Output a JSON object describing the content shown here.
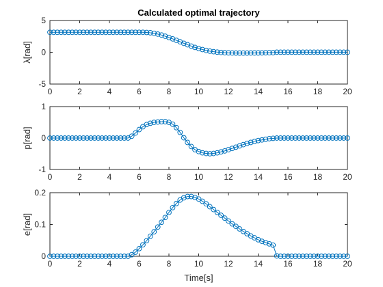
{
  "colors": {
    "series": "#0072BD",
    "axis": "#262626",
    "background": "#ffffff"
  },
  "chart_data": [
    {
      "type": "scatter",
      "title": "Calculated optimal trajectory",
      "xlabel": "",
      "ylabel": "λ[rad]",
      "xlim": [
        0,
        20
      ],
      "ylim": [
        -5,
        5
      ],
      "xticks": [
        "0",
        "2",
        "4",
        "6",
        "8",
        "10",
        "12",
        "14",
        "16",
        "18",
        "20"
      ],
      "yticks": [
        "-5",
        "0",
        "5"
      ],
      "marker": "circle",
      "grid": false,
      "series": [
        {
          "x": [
            0,
            0.25,
            0.5,
            0.75,
            1,
            1.25,
            1.5,
            1.75,
            2,
            2.25,
            2.5,
            2.75,
            3,
            3.25,
            3.5,
            3.75,
            4,
            4.25,
            4.5,
            4.75,
            5,
            5.25,
            5.5,
            5.75,
            6,
            6.25,
            6.5,
            6.75,
            7,
            7.25,
            7.5,
            7.75,
            8,
            8.25,
            8.5,
            8.75,
            9,
            9.25,
            9.5,
            9.75,
            10,
            10.25,
            10.5,
            10.75,
            11,
            11.25,
            11.5,
            11.75,
            12,
            12.25,
            12.5,
            12.75,
            13,
            13.25,
            13.5,
            13.75,
            14,
            14.25,
            14.5,
            14.75,
            15,
            15.25,
            15.5,
            15.75,
            16,
            16.25,
            16.5,
            16.75,
            17,
            17.25,
            17.5,
            17.75,
            18,
            18.25,
            18.5,
            18.75,
            19,
            19.25,
            19.5,
            19.75,
            20
          ],
          "values": [
            3.14,
            3.14,
            3.14,
            3.14,
            3.14,
            3.14,
            3.14,
            3.14,
            3.14,
            3.14,
            3.14,
            3.14,
            3.14,
            3.14,
            3.14,
            3.14,
            3.14,
            3.14,
            3.14,
            3.14,
            3.14,
            3.14,
            3.14,
            3.14,
            3.14,
            3.14,
            3.12,
            3.07,
            2.98,
            2.86,
            2.71,
            2.53,
            2.33,
            2.11,
            1.88,
            1.65,
            1.41,
            1.19,
            0.97,
            0.77,
            0.59,
            0.43,
            0.29,
            0.18,
            0.09,
            0.02,
            -0.03,
            -0.07,
            -0.09,
            -0.11,
            -0.12,
            -0.12,
            -0.12,
            -0.12,
            -0.11,
            -0.11,
            -0.1,
            -0.09,
            -0.08,
            -0.07,
            -0.06,
            0.01,
            0.01,
            0.01,
            0.01,
            0.01,
            0.01,
            0.01,
            0.01,
            0.01,
            0.01,
            0.01,
            0.01,
            0.01,
            0.01,
            0.01,
            0.01,
            0.01,
            0.01,
            0.01,
            0.01
          ]
        }
      ]
    },
    {
      "type": "scatter",
      "title": "",
      "xlabel": "",
      "ylabel": "p[rad]",
      "xlim": [
        0,
        20
      ],
      "ylim": [
        -1,
        1
      ],
      "xticks": [
        "0",
        "2",
        "4",
        "6",
        "8",
        "10",
        "12",
        "14",
        "16",
        "18",
        "20"
      ],
      "yticks": [
        "-1",
        "0",
        "1"
      ],
      "marker": "circle",
      "grid": false,
      "series": [
        {
          "x": [
            0,
            0.25,
            0.5,
            0.75,
            1,
            1.25,
            1.5,
            1.75,
            2,
            2.25,
            2.5,
            2.75,
            3,
            3.25,
            3.5,
            3.75,
            4,
            4.25,
            4.5,
            4.75,
            5,
            5.25,
            5.5,
            5.75,
            6,
            6.25,
            6.5,
            6.75,
            7,
            7.25,
            7.5,
            7.75,
            8,
            8.25,
            8.5,
            8.75,
            9,
            9.25,
            9.5,
            9.75,
            10,
            10.25,
            10.5,
            10.75,
            11,
            11.25,
            11.5,
            11.75,
            12,
            12.25,
            12.5,
            12.75,
            13,
            13.25,
            13.5,
            13.75,
            14,
            14.25,
            14.5,
            14.75,
            15,
            15.25,
            15.5,
            15.75,
            16,
            16.25,
            16.5,
            16.75,
            17,
            17.25,
            17.5,
            17.75,
            18,
            18.25,
            18.5,
            18.75,
            19,
            19.25,
            19.5,
            19.75,
            20
          ],
          "values": [
            0,
            0,
            0,
            0,
            0,
            0,
            0,
            0,
            0,
            0,
            0,
            0,
            0,
            0,
            0,
            0,
            0,
            0,
            0,
            0,
            0,
            0,
            0.06,
            0.16,
            0.27,
            0.36,
            0.43,
            0.47,
            0.5,
            0.51,
            0.52,
            0.52,
            0.5,
            0.44,
            0.33,
            0.18,
            0.01,
            -0.14,
            -0.27,
            -0.37,
            -0.43,
            -0.47,
            -0.49,
            -0.5,
            -0.49,
            -0.47,
            -0.44,
            -0.41,
            -0.37,
            -0.33,
            -0.29,
            -0.25,
            -0.21,
            -0.17,
            -0.14,
            -0.11,
            -0.08,
            -0.06,
            -0.04,
            -0.02,
            -0.01,
            0,
            0,
            0,
            0,
            0,
            0,
            0,
            0,
            0,
            0,
            0,
            0,
            0,
            0,
            0,
            0,
            0,
            0,
            0,
            0
          ]
        }
      ]
    },
    {
      "type": "scatter",
      "title": "",
      "xlabel": "Time[s]",
      "ylabel": "e[rad]",
      "xlim": [
        0,
        20
      ],
      "ylim": [
        0,
        0.2
      ],
      "xticks": [
        "0",
        "2",
        "4",
        "6",
        "8",
        "10",
        "12",
        "14",
        "16",
        "18",
        "20"
      ],
      "yticks": [
        "0",
        "0.1",
        "0.2"
      ],
      "marker": "circle",
      "grid": false,
      "series": [
        {
          "x": [
            0,
            0.25,
            0.5,
            0.75,
            1,
            1.25,
            1.5,
            1.75,
            2,
            2.25,
            2.5,
            2.75,
            3,
            3.25,
            3.5,
            3.75,
            4,
            4.25,
            4.5,
            4.75,
            5,
            5.25,
            5.5,
            5.75,
            6,
            6.25,
            6.5,
            6.75,
            7,
            7.25,
            7.5,
            7.75,
            8,
            8.25,
            8.5,
            8.75,
            9,
            9.25,
            9.5,
            9.75,
            10,
            10.25,
            10.5,
            10.75,
            11,
            11.25,
            11.5,
            11.75,
            12,
            12.25,
            12.5,
            12.75,
            13,
            13.25,
            13.5,
            13.75,
            14,
            14.25,
            14.5,
            14.75,
            15,
            15.25,
            15.5,
            15.75,
            16,
            16.25,
            16.5,
            16.75,
            17,
            17.25,
            17.5,
            17.75,
            18,
            18.25,
            18.5,
            18.75,
            19,
            19.25,
            19.5,
            19.75,
            20
          ],
          "values": [
            0,
            0,
            0,
            0,
            0,
            0,
            0,
            0,
            0,
            0,
            0,
            0,
            0,
            0,
            0,
            0,
            0,
            0,
            0,
            0,
            0,
            0,
            0.005,
            0.013,
            0.024,
            0.036,
            0.049,
            0.063,
            0.077,
            0.092,
            0.107,
            0.122,
            0.138,
            0.153,
            0.166,
            0.177,
            0.184,
            0.188,
            0.188,
            0.185,
            0.18,
            0.173,
            0.165,
            0.156,
            0.147,
            0.138,
            0.129,
            0.12,
            0.111,
            0.102,
            0.094,
            0.086,
            0.078,
            0.071,
            0.064,
            0.058,
            0.052,
            0.047,
            0.043,
            0.039,
            0.035,
            0.001,
            0,
            0,
            0,
            0,
            0,
            0,
            0,
            0,
            0,
            0,
            0,
            0,
            0,
            0,
            0,
            0,
            0,
            0,
            0
          ]
        }
      ]
    }
  ]
}
